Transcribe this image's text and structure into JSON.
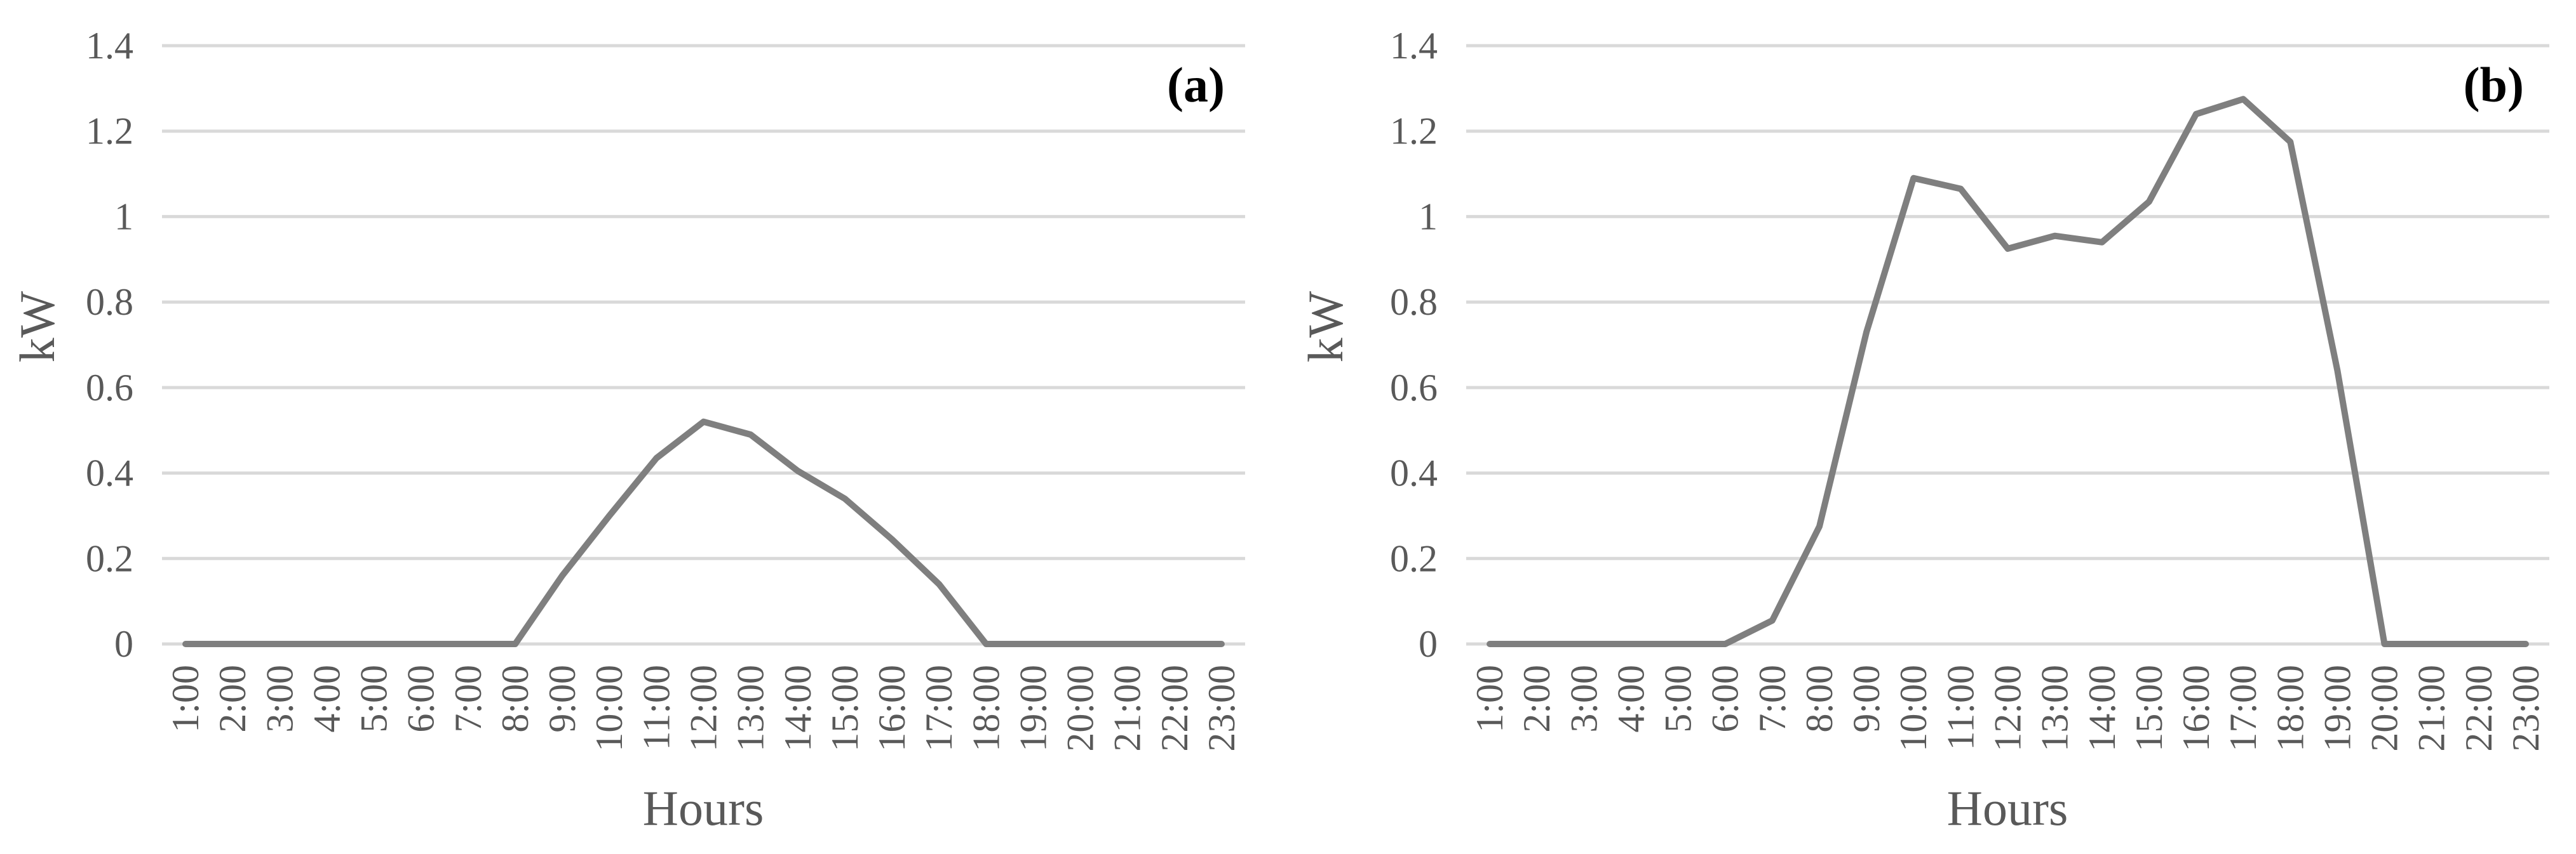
{
  "colors": {
    "line": "#7f7f7f",
    "grid": "#d9d9d9",
    "text": "#595959"
  },
  "chart_data": [
    {
      "type": "line",
      "panel_label": "(a)",
      "xlabel": "Hours",
      "ylabel": "kW",
      "ylim": [
        0,
        1.4
      ],
      "yticks": [
        "0",
        "0.2",
        "0.4",
        "0.6",
        "0.8",
        "1",
        "1.2",
        "1.4"
      ],
      "grid": true,
      "categories": [
        "1:00",
        "2:00",
        "3:00",
        "4:00",
        "5:00",
        "6:00",
        "7:00",
        "8:00",
        "9:00",
        "10:00",
        "11:00",
        "12:00",
        "13:00",
        "14:00",
        "15:00",
        "16:00",
        "17:00",
        "18:00",
        "19:00",
        "20:00",
        "21:00",
        "22:00",
        "23:00"
      ],
      "values": [
        0,
        0,
        0,
        0,
        0,
        0,
        0,
        0,
        0.16,
        0.3,
        0.435,
        0.52,
        0.49,
        0.405,
        0.34,
        0.245,
        0.14,
        0,
        0,
        0,
        0,
        0,
        0
      ]
    },
    {
      "type": "line",
      "panel_label": "(b)",
      "xlabel": "Hours",
      "ylabel": "kW",
      "ylim": [
        0,
        1.4
      ],
      "yticks": [
        "0",
        "0.2",
        "0.4",
        "0.6",
        "0.8",
        "1",
        "1.2",
        "1.4"
      ],
      "grid": true,
      "categories": [
        "1:00",
        "2:00",
        "3:00",
        "4:00",
        "5:00",
        "6:00",
        "7:00",
        "8:00",
        "9:00",
        "10:00",
        "11:00",
        "12:00",
        "13:00",
        "14:00",
        "15:00",
        "16:00",
        "17:00",
        "18:00",
        "19:00",
        "20:00",
        "21:00",
        "22:00",
        "23:00"
      ],
      "values": [
        0,
        0,
        0,
        0,
        0,
        0,
        0.055,
        0.275,
        0.73,
        1.09,
        1.065,
        0.925,
        0.955,
        0.94,
        1.035,
        1.24,
        1.275,
        1.175,
        0.64,
        0,
        0,
        0,
        0
      ]
    }
  ]
}
